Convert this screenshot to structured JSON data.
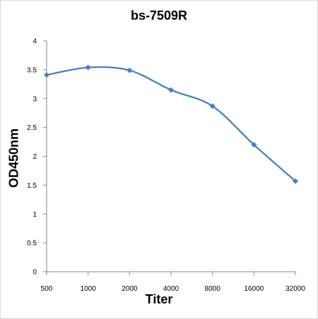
{
  "chart_data": {
    "type": "line",
    "title": "bs-7509R",
    "xlabel": "Titer",
    "ylabel": "OD450nm",
    "categories": [
      "500",
      "1000",
      "2000",
      "4000",
      "8000",
      "16000",
      "32000"
    ],
    "series": [
      {
        "values": [
          3.41,
          3.54,
          3.49,
          3.15,
          2.87,
          2.2,
          1.57
        ]
      }
    ],
    "ylim": [
      0,
      4
    ],
    "yticks": [
      "0",
      "0.5",
      "1",
      "1.5",
      "2",
      "2.5",
      "3",
      "3.5",
      "4"
    ],
    "grid": false,
    "legend": "none",
    "colors": {
      "line": "#4a7ebb",
      "marker": "#4a7ebb",
      "axis": "#868686"
    }
  }
}
